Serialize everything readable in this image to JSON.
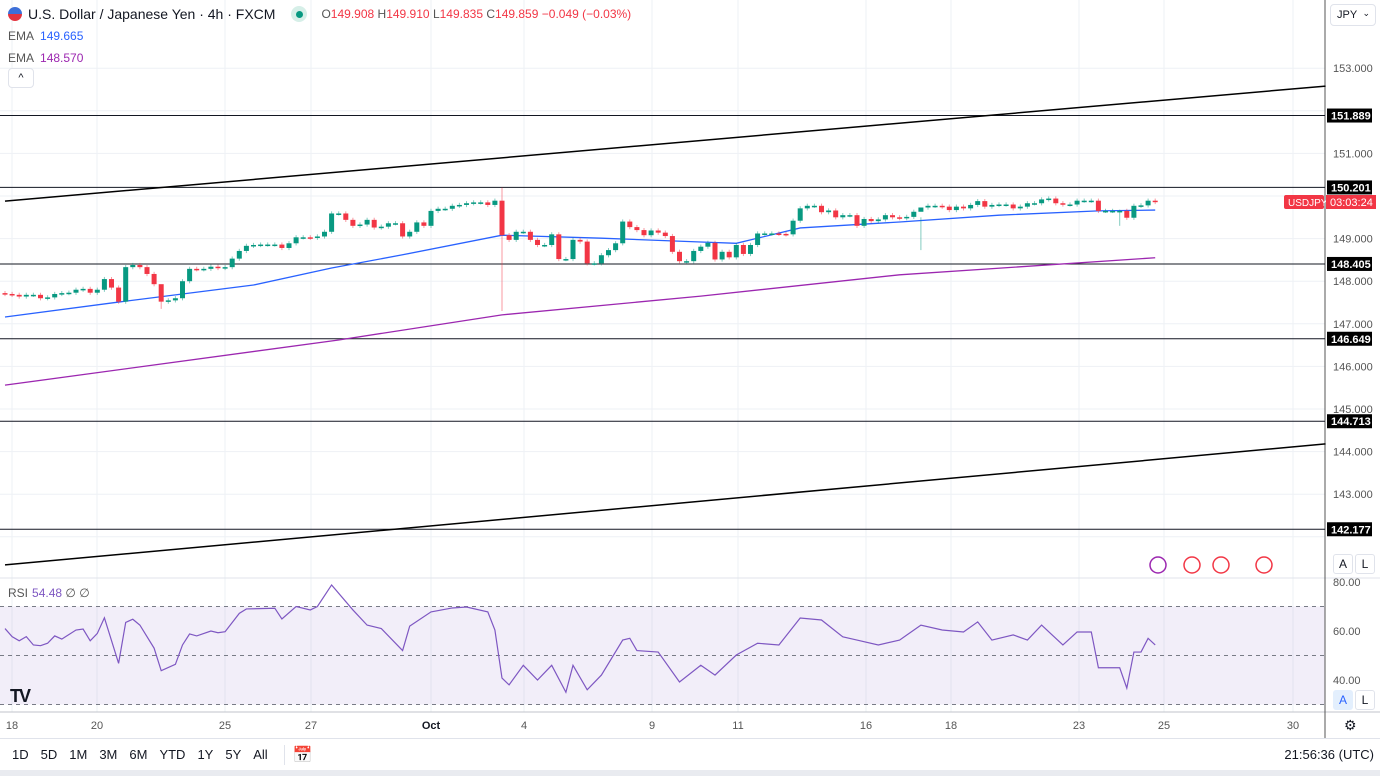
{
  "header": {
    "title": "U.S. Dollar / Japanese Yen · 4h · FXCM",
    "ohlc": {
      "o_label": "O",
      "o": "149.908",
      "h_label": "H",
      "h": "149.910",
      "l_label": "L",
      "l": "149.835",
      "c_label": "C",
      "c": "149.859",
      "change": "−0.049 (−0.03%)"
    },
    "ema1": {
      "label": "EMA",
      "value": "149.665",
      "color": "#2962ff"
    },
    "ema2": {
      "label": "EMA",
      "value": "148.570",
      "color": "#9c27b0"
    },
    "collapse_icon": "chevron-up"
  },
  "rsi_legend": {
    "label": "RSI",
    "value": "54.48",
    "extra1": "∅",
    "extra2": "∅"
  },
  "currency_select": "JPY",
  "price_axis": {
    "ticks": [
      "153.000",
      "151.000",
      "149.000",
      "148.000",
      "147.000",
      "146.000",
      "145.000",
      "144.000",
      "143.000"
    ],
    "symbol_tag": "USDJPY",
    "countdown": "03:03:24",
    "auto": "A",
    "log": "L"
  },
  "rsi_axis": {
    "ticks": [
      "80.00",
      "60.00",
      "40.00"
    ]
  },
  "time_axis": {
    "ticks": [
      "18",
      "20",
      "25",
      "27",
      "Oct",
      "4",
      "9",
      "11",
      "16",
      "18",
      "23",
      "25",
      "30"
    ]
  },
  "toolbar": {
    "ranges": [
      "1D",
      "5D",
      "1M",
      "3M",
      "6M",
      "YTD",
      "1Y",
      "5Y",
      "All"
    ],
    "clock": "21:56:36 (UTC)"
  },
  "colors": {
    "up": "#089981",
    "down": "#f23645",
    "ema_fast": "#2962ff",
    "ema_slow": "#9c27b0",
    "rsi": "#7e57c2"
  },
  "chart_data": {
    "type": "candlestick",
    "symbol": "USDJPY",
    "interval": "4h",
    "ylim": [
      141.7,
      153.4
    ],
    "closes": [
      147.7,
      147.68,
      147.64,
      147.68,
      147.68,
      147.6,
      147.62,
      147.7,
      147.72,
      147.73,
      147.8,
      147.82,
      147.73,
      147.8,
      148.05,
      147.85,
      147.52,
      148.33,
      148.38,
      148.33,
      148.17,
      147.93,
      147.52,
      147.55,
      147.6,
      148.0,
      148.29,
      148.28,
      148.29,
      148.34,
      148.31,
      148.33,
      148.53,
      148.71,
      148.83,
      148.85,
      148.86,
      148.86,
      148.86,
      148.78,
      148.89,
      149.03,
      149.03,
      149.02,
      149.05,
      149.16,
      149.59,
      149.59,
      149.44,
      149.3,
      149.33,
      149.44,
      149.26,
      149.28,
      149.36,
      149.36,
      149.05,
      149.16,
      149.38,
      149.3,
      149.65,
      149.7,
      149.7,
      149.77,
      149.79,
      149.83,
      149.85,
      149.85,
      149.79,
      149.89,
      149.08,
      148.97,
      149.16,
      149.16,
      148.97,
      148.85,
      148.85,
      149.1,
      148.52,
      148.52,
      148.97,
      148.93,
      148.42,
      148.42,
      148.61,
      148.73,
      148.89,
      149.4,
      149.27,
      149.2,
      149.08,
      149.19,
      149.14,
      149.06,
      148.69,
      148.47,
      148.47,
      148.71,
      148.81,
      148.9,
      148.51,
      148.69,
      148.56,
      148.85,
      148.64,
      148.85,
      149.12,
      149.12,
      149.12,
      149.11,
      149.1,
      149.42,
      149.71,
      149.77,
      149.77,
      149.62,
      149.66,
      149.5,
      149.55,
      149.55,
      149.3,
      149.46,
      149.41,
      149.45,
      149.55,
      149.5,
      149.48,
      149.51,
      149.63,
      149.73,
      149.77,
      149.77,
      149.75,
      149.67,
      149.75,
      149.71,
      149.79,
      149.88,
      149.75,
      149.79,
      149.8,
      149.8,
      149.71,
      149.75,
      149.83,
      149.83,
      149.92,
      149.94,
      149.83,
      149.8,
      149.8,
      149.89,
      149.89,
      149.89,
      149.65,
      149.65,
      149.65,
      149.65,
      149.49,
      149.77,
      149.78,
      149.89,
      149.86
    ],
    "wick_overrides": [
      {
        "i": 70,
        "high": 150.2,
        "low": 147.3
      },
      {
        "i": 22,
        "high": 147.9,
        "low": 147.35
      },
      {
        "i": 129,
        "high": 149.5,
        "low": 148.73
      },
      {
        "i": 157,
        "high": 149.68,
        "low": 149.3
      }
    ],
    "ema_fast": [
      [
        0,
        147.16
      ],
      [
        16,
        147.51
      ],
      [
        35,
        147.91
      ],
      [
        46,
        148.31
      ],
      [
        56,
        148.62
      ],
      [
        70,
        149.08
      ],
      [
        84,
        149.01
      ],
      [
        98,
        148.92
      ],
      [
        103,
        148.89
      ],
      [
        112,
        149.25
      ],
      [
        126,
        149.39
      ],
      [
        140,
        149.55
      ],
      [
        154,
        149.65
      ],
      [
        162,
        149.67
      ]
    ],
    "ema_slow": [
      [
        0,
        145.56
      ],
      [
        47,
        146.62
      ],
      [
        70,
        147.21
      ],
      [
        98,
        147.65
      ],
      [
        126,
        148.15
      ],
      [
        162,
        148.55
      ]
    ],
    "horizontal_levels": [
      151.889,
      150.201,
      148.405,
      146.649,
      144.713,
      142.177
    ],
    "trend_lines": [
      [
        [
          0,
          149.88
        ],
        [
          186,
          152.58
        ]
      ],
      [
        [
          0,
          141.34
        ],
        [
          186,
          144.18
        ]
      ]
    ],
    "last_price": 149.859,
    "rsi": {
      "ylim": [
        27,
        82
      ],
      "bands": [
        30,
        50,
        70
      ],
      "values": [
        [
          0,
          61
        ],
        [
          1,
          57.7
        ],
        [
          2,
          56
        ],
        [
          3,
          57.7
        ],
        [
          4,
          54.3
        ],
        [
          5,
          54
        ],
        [
          6,
          55
        ],
        [
          7,
          58
        ],
        [
          8,
          56.7
        ],
        [
          10,
          60.4
        ],
        [
          11,
          60.8
        ],
        [
          12,
          56
        ],
        [
          13,
          59
        ],
        [
          14,
          65.4
        ],
        [
          16,
          46.8
        ],
        [
          17,
          63.5
        ],
        [
          18,
          64.8
        ],
        [
          19,
          62.4
        ],
        [
          21,
          53
        ],
        [
          22,
          43.8
        ],
        [
          24,
          46.4
        ],
        [
          25,
          54.3
        ],
        [
          26,
          58.8
        ],
        [
          27,
          58
        ],
        [
          29,
          60
        ],
        [
          30,
          59.3
        ],
        [
          31,
          59.7
        ],
        [
          33,
          67.2
        ],
        [
          34,
          69
        ],
        [
          38,
          69.3
        ],
        [
          39,
          64.9
        ],
        [
          41,
          70
        ],
        [
          43,
          68.6
        ],
        [
          44,
          70
        ],
        [
          46,
          78.8
        ],
        [
          49,
          68.6
        ],
        [
          51,
          62.4
        ],
        [
          53,
          61
        ],
        [
          56,
          52
        ],
        [
          57,
          62
        ],
        [
          60,
          67.8
        ],
        [
          63,
          69.4
        ],
        [
          65,
          69.8
        ],
        [
          68,
          67.8
        ],
        [
          69,
          60.4
        ],
        [
          70,
          40.8
        ],
        [
          71,
          38
        ],
        [
          73,
          46
        ],
        [
          75,
          40
        ],
        [
          77,
          46
        ],
        [
          79,
          35
        ],
        [
          80,
          46
        ],
        [
          82,
          36
        ],
        [
          84,
          42
        ],
        [
          87,
          56.3
        ],
        [
          88,
          57
        ],
        [
          89,
          52
        ],
        [
          92,
          51.4
        ],
        [
          95,
          39.2
        ],
        [
          98,
          46
        ],
        [
          100,
          42
        ],
        [
          103,
          50.2
        ],
        [
          106,
          55
        ],
        [
          109,
          54.3
        ],
        [
          112,
          65.3
        ],
        [
          115,
          64.5
        ],
        [
          118,
          57.6
        ],
        [
          120,
          56.3
        ],
        [
          123,
          54.3
        ],
        [
          126,
          56.3
        ],
        [
          129,
          62.4
        ],
        [
          132,
          60.4
        ],
        [
          135,
          59.6
        ],
        [
          137,
          63.7
        ],
        [
          139,
          56.3
        ],
        [
          142,
          58.4
        ],
        [
          144,
          56.3
        ],
        [
          146,
          62.4
        ],
        [
          149,
          54.3
        ],
        [
          151,
          59.6
        ],
        [
          153,
          59.6
        ],
        [
          154,
          45
        ],
        [
          157,
          45
        ],
        [
          158,
          36.7
        ],
        [
          159,
          51.4
        ],
        [
          160,
          51.4
        ],
        [
          161,
          57
        ],
        [
          162,
          54.3
        ]
      ]
    }
  }
}
